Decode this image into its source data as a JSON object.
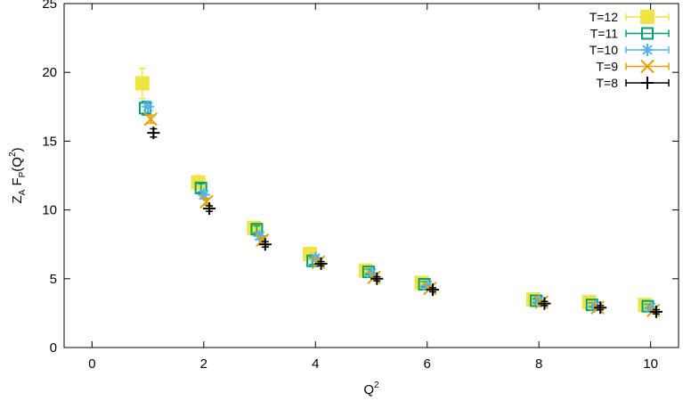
{
  "chart_data": {
    "type": "scatter",
    "title": "",
    "xlabel": {
      "base": "Q",
      "sup": "2"
    },
    "ylabel": {
      "pre": "Z",
      "pre_sub": "A",
      "mid": " F",
      "mid_sub": "P",
      "open": "(Q",
      "sup": "2",
      "close": ")"
    },
    "xlim": [
      -0.5,
      10.5
    ],
    "ylim": [
      0,
      25
    ],
    "xticks": [
      0,
      2,
      4,
      6,
      8,
      10
    ],
    "yticks": [
      0,
      5,
      10,
      15,
      20,
      25
    ],
    "grid": false,
    "legend_position": "top-right",
    "series": [
      {
        "name": "T=12",
        "marker": "filled-square",
        "color": "#f0e442",
        "points": [
          {
            "x": 0.9,
            "y": 19.2,
            "err": 1.1
          },
          {
            "x": 1.9,
            "y": 12.0,
            "err": 0.5
          },
          {
            "x": 2.9,
            "y": 8.7,
            "err": 0.3
          },
          {
            "x": 3.9,
            "y": 6.8,
            "err": 0.3
          },
          {
            "x": 4.9,
            "y": 5.6,
            "err": 0.2
          },
          {
            "x": 5.9,
            "y": 4.7,
            "err": 0.2
          },
          {
            "x": 7.9,
            "y": 3.5,
            "err": 0.2
          },
          {
            "x": 8.9,
            "y": 3.3,
            "err": 0.2
          },
          {
            "x": 9.9,
            "y": 3.1,
            "err": 0.2
          }
        ]
      },
      {
        "name": "T=11",
        "marker": "open-square",
        "color": "#009e73",
        "points": [
          {
            "x": 0.95,
            "y": 17.4,
            "err": 0.5
          },
          {
            "x": 1.95,
            "y": 11.6,
            "err": 0.3
          },
          {
            "x": 2.95,
            "y": 8.6,
            "err": 0.25
          },
          {
            "x": 3.95,
            "y": 6.3,
            "err": 0.25
          },
          {
            "x": 4.95,
            "y": 5.5,
            "err": 0.2
          },
          {
            "x": 5.95,
            "y": 4.6,
            "err": 0.2
          },
          {
            "x": 7.95,
            "y": 3.4,
            "err": 0.15
          },
          {
            "x": 8.95,
            "y": 3.1,
            "err": 0.15
          },
          {
            "x": 9.95,
            "y": 3.0,
            "err": 0.15
          }
        ]
      },
      {
        "name": "T=10",
        "marker": "asterisk",
        "color": "#56b4e9",
        "points": [
          {
            "x": 1.0,
            "y": 17.5,
            "err": 0.4
          },
          {
            "x": 2.0,
            "y": 11.1,
            "err": 0.3
          },
          {
            "x": 3.0,
            "y": 8.1,
            "err": 0.25
          },
          {
            "x": 4.0,
            "y": 6.5,
            "err": 0.2
          },
          {
            "x": 5.0,
            "y": 5.4,
            "err": 0.2
          },
          {
            "x": 6.0,
            "y": 4.5,
            "err": 0.15
          },
          {
            "x": 8.0,
            "y": 3.4,
            "err": 0.15
          },
          {
            "x": 9.0,
            "y": 3.0,
            "err": 0.15
          },
          {
            "x": 10.0,
            "y": 2.9,
            "err": 0.15
          }
        ]
      },
      {
        "name": "T=9",
        "marker": "x",
        "color": "#e69f00",
        "points": [
          {
            "x": 1.05,
            "y": 16.6,
            "err": 0.3
          },
          {
            "x": 2.05,
            "y": 10.6,
            "err": 0.25
          },
          {
            "x": 3.05,
            "y": 7.8,
            "err": 0.2
          },
          {
            "x": 4.05,
            "y": 6.2,
            "err": 0.2
          },
          {
            "x": 5.05,
            "y": 5.1,
            "err": 0.15
          },
          {
            "x": 6.05,
            "y": 4.3,
            "err": 0.15
          },
          {
            "x": 8.05,
            "y": 3.3,
            "err": 0.15
          },
          {
            "x": 9.05,
            "y": 2.9,
            "err": 0.15
          },
          {
            "x": 10.05,
            "y": 2.7,
            "err": 0.15
          }
        ]
      },
      {
        "name": "T=8",
        "marker": "plus",
        "color": "#000000",
        "points": [
          {
            "x": 1.1,
            "y": 15.6,
            "err": 0.3
          },
          {
            "x": 2.1,
            "y": 10.1,
            "err": 0.2
          },
          {
            "x": 3.1,
            "y": 7.5,
            "err": 0.2
          },
          {
            "x": 4.1,
            "y": 6.1,
            "err": 0.15
          },
          {
            "x": 5.1,
            "y": 5.0,
            "err": 0.15
          },
          {
            "x": 6.1,
            "y": 4.2,
            "err": 0.15
          },
          {
            "x": 8.1,
            "y": 3.2,
            "err": 0.15
          },
          {
            "x": 9.1,
            "y": 2.9,
            "err": 0.15
          },
          {
            "x": 10.1,
            "y": 2.6,
            "err": 0.15
          }
        ]
      }
    ]
  }
}
